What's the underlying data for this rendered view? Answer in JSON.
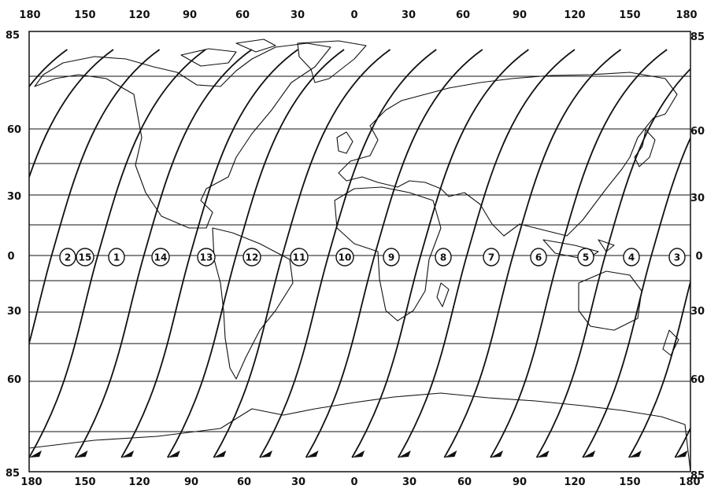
{
  "map": {
    "lon_ticks_top": [
      "180",
      "150",
      "120",
      "90",
      "60",
      "30",
      "0",
      "30",
      "60",
      "90",
      "120",
      "150",
      "180"
    ],
    "lon_ticks_bottom": [
      "180",
      "150",
      "120",
      "90",
      "60",
      "30",
      "0",
      "30",
      "60",
      "90",
      "120",
      "150",
      "180"
    ],
    "lat_ticks_left": [
      "85",
      "60",
      "30",
      "0",
      "30",
      "60",
      "85"
    ],
    "lat_ticks_right": [
      "85",
      "60",
      "30",
      "0",
      "30",
      "60",
      "85"
    ],
    "orbit_numbers": [
      "2",
      "15",
      "1",
      "14",
      "13",
      "12",
      "11",
      "10",
      "9",
      "8",
      "7",
      "6",
      "5",
      "4",
      "3"
    ]
  },
  "colors": {
    "ink": "#111111",
    "paper": "#ffffff"
  }
}
